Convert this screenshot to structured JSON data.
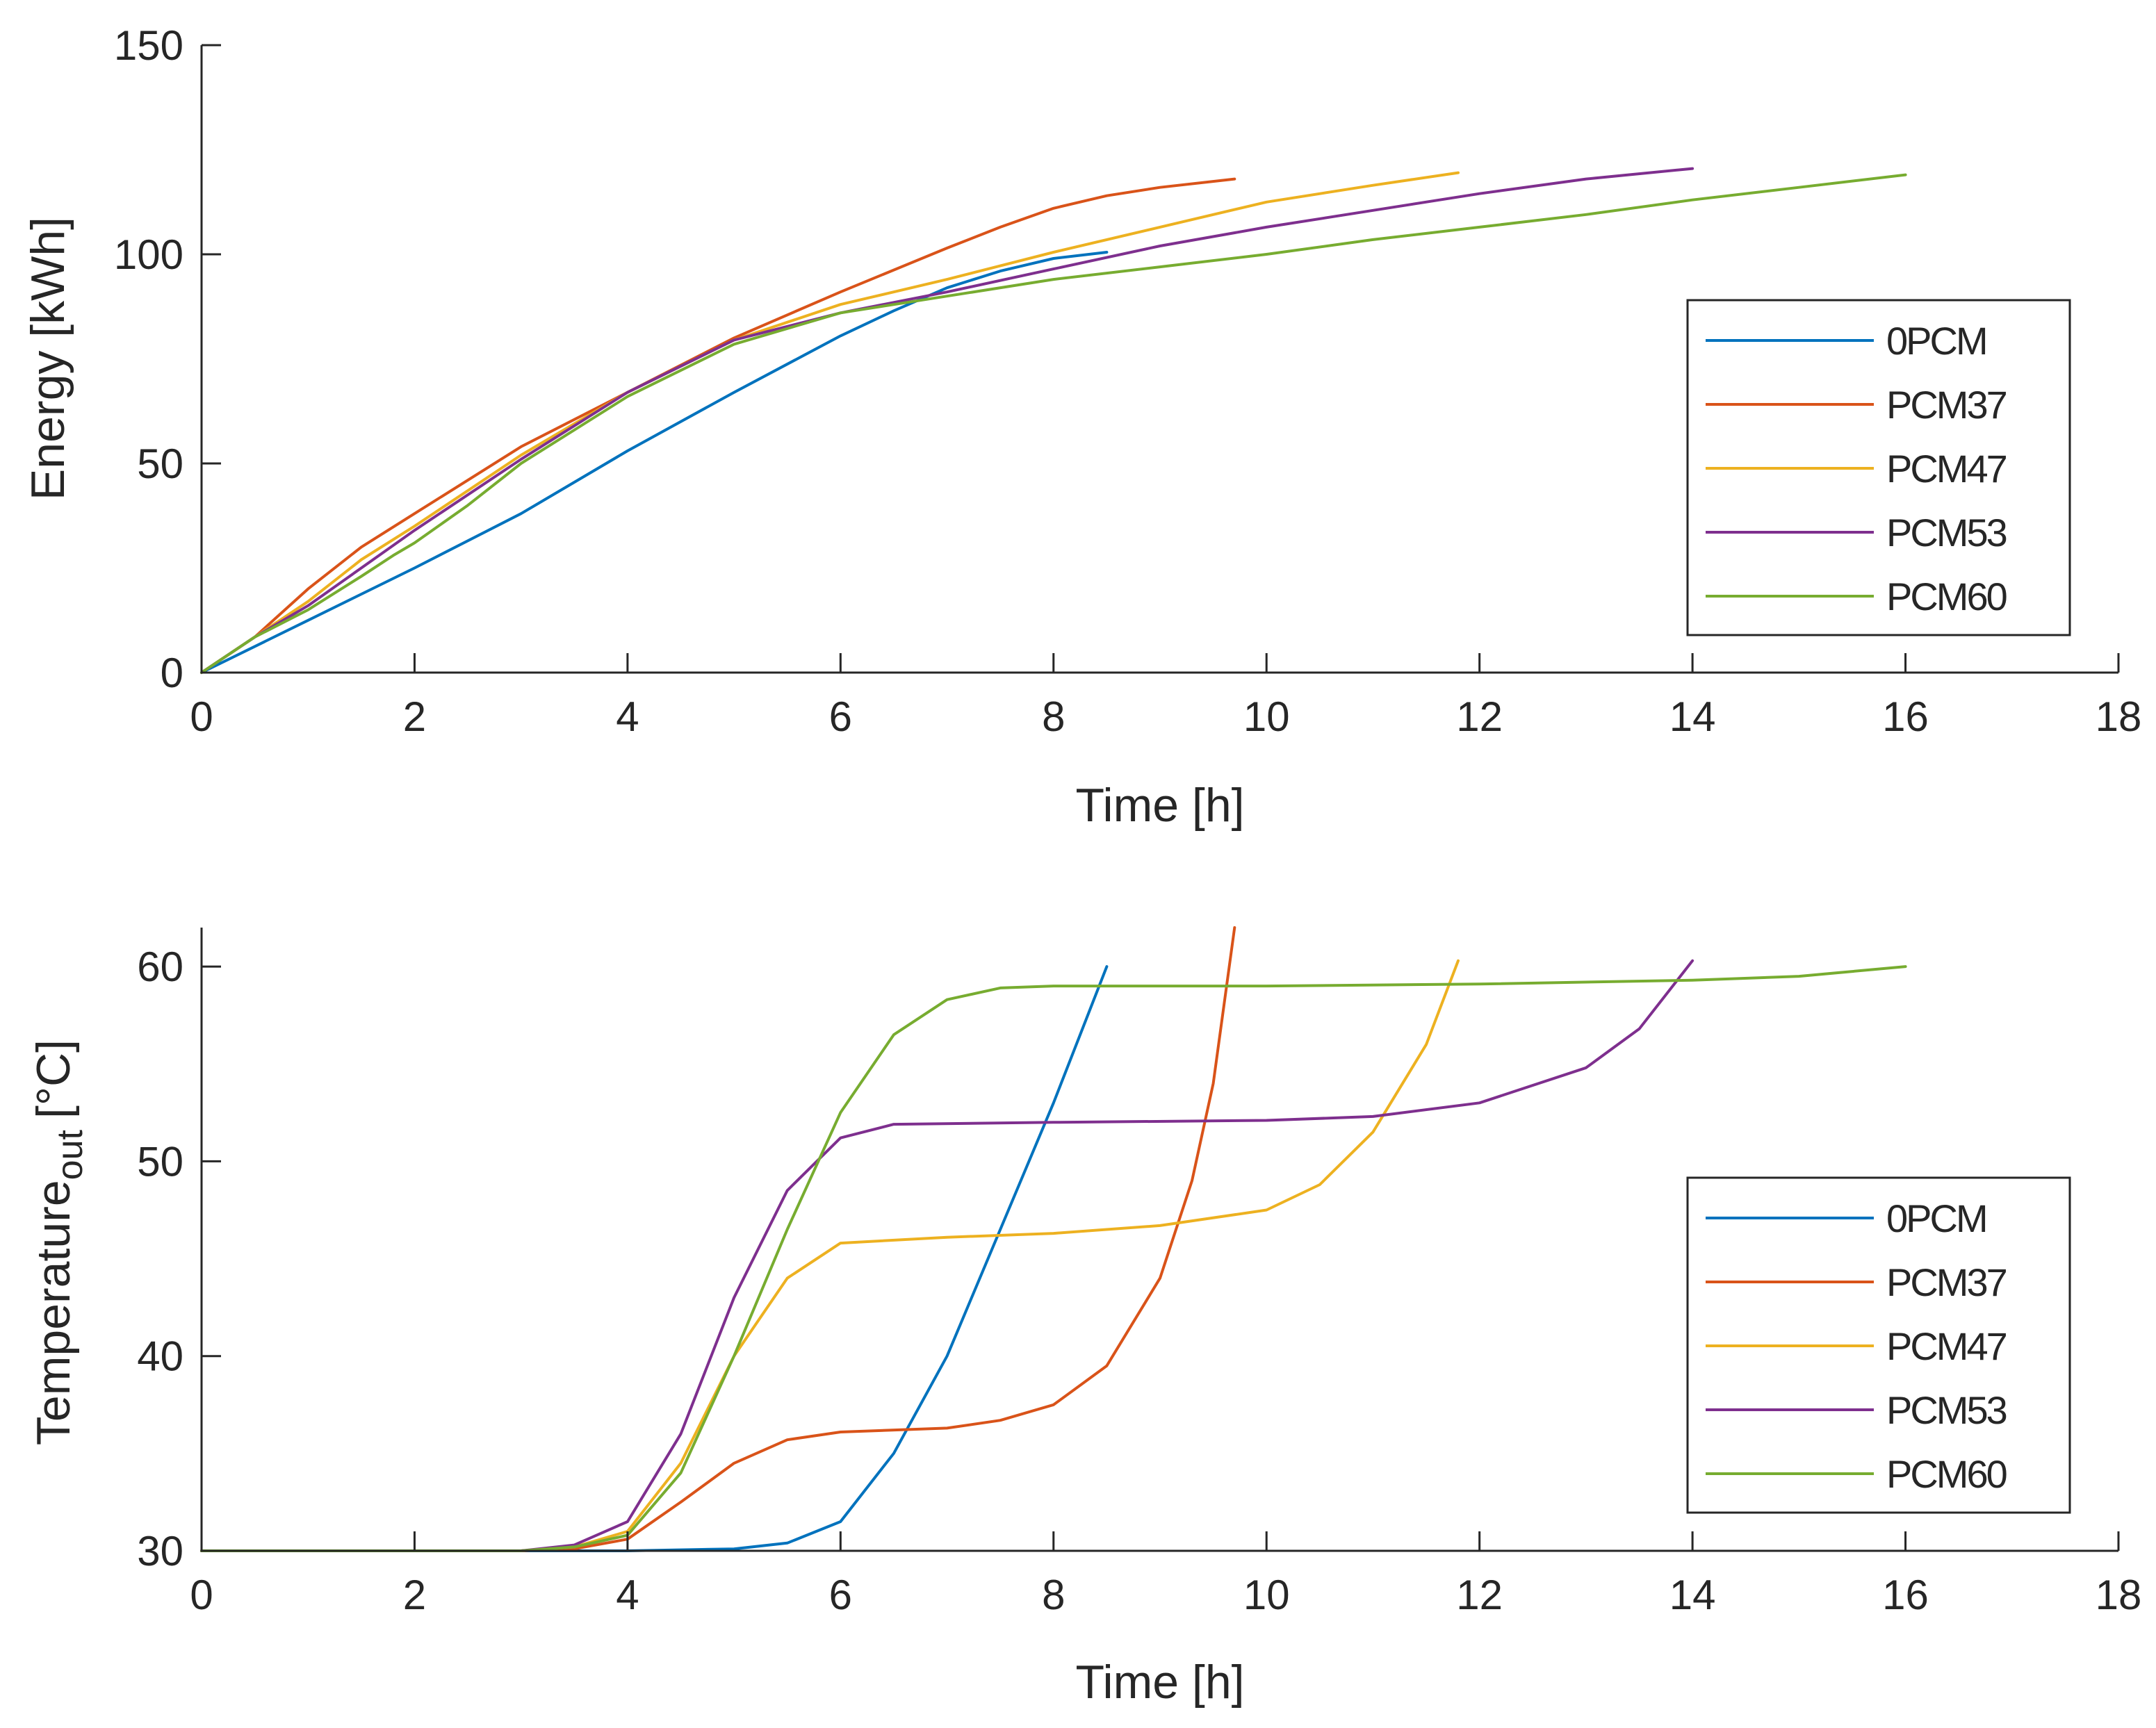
{
  "colors": {
    "0PCM": "#0072BD",
    "PCM37": "#D95319",
    "PCM47": "#EDB120",
    "PCM53": "#7E2F8E",
    "PCM60": "#77AC30",
    "axis": "#262626"
  },
  "chart_data": [
    {
      "type": "line",
      "title": "",
      "xlabel": "Time [h]",
      "ylabel": "Energy [kWh]",
      "xlim": [
        0,
        18
      ],
      "ylim": [
        0,
        150
      ],
      "xticks": [
        0,
        2,
        4,
        6,
        8,
        10,
        12,
        14,
        16,
        18
      ],
      "yticks": [
        0,
        50,
        100,
        150
      ],
      "legend": {
        "placement": "lower-right",
        "entries": [
          "0PCM",
          "PCM37",
          "PCM47",
          "PCM53",
          "PCM60"
        ]
      },
      "series": [
        {
          "name": "0PCM",
          "color": "#0072BD",
          "points": [
            [
              0,
              0
            ],
            [
              1,
              12.5
            ],
            [
              2,
              25
            ],
            [
              3,
              38
            ],
            [
              4,
              53
            ],
            [
              5,
              67
            ],
            [
              6,
              80.5
            ],
            [
              6.5,
              86.5
            ],
            [
              7,
              92
            ],
            [
              7.5,
              96
            ],
            [
              8,
              99
            ],
            [
              8.5,
              100.5
            ]
          ]
        },
        {
          "name": "PCM37",
          "color": "#D95319",
          "points": [
            [
              0,
              0
            ],
            [
              0.5,
              8.5
            ],
            [
              1,
              20
            ],
            [
              1.5,
              30
            ],
            [
              2,
              38
            ],
            [
              3,
              54
            ],
            [
              4,
              67
            ],
            [
              5,
              80
            ],
            [
              6,
              91
            ],
            [
              7,
              101.5
            ],
            [
              7.5,
              106.5
            ],
            [
              8,
              111
            ],
            [
              8.5,
              114
            ],
            [
              9,
              116
            ],
            [
              9.7,
              118
            ]
          ]
        },
        {
          "name": "PCM47",
          "color": "#EDB120",
          "points": [
            [
              0,
              0
            ],
            [
              0.5,
              8.5
            ],
            [
              1,
              17
            ],
            [
              1.5,
              27
            ],
            [
              2,
              35
            ],
            [
              3,
              52
            ],
            [
              4,
              67
            ],
            [
              5,
              79.5
            ],
            [
              6,
              88
            ],
            [
              7,
              94
            ],
            [
              8,
              100.5
            ],
            [
              9,
              106.5
            ],
            [
              10,
              112.5
            ],
            [
              11,
              116.5
            ],
            [
              11.8,
              119.5
            ]
          ]
        },
        {
          "name": "PCM53",
          "color": "#7E2F8E",
          "points": [
            [
              0,
              0
            ],
            [
              0.5,
              8.5
            ],
            [
              1,
              16
            ],
            [
              1.5,
              25
            ],
            [
              2,
              34
            ],
            [
              3,
              51
            ],
            [
              4,
              67
            ],
            [
              5,
              79.5
            ],
            [
              6,
              86
            ],
            [
              7,
              91
            ],
            [
              8,
              96.5
            ],
            [
              9,
              102
            ],
            [
              10,
              106.5
            ],
            [
              11,
              110.5
            ],
            [
              12,
              114.5
            ],
            [
              13,
              118
            ],
            [
              14,
              120.5
            ]
          ]
        },
        {
          "name": "PCM60",
          "color": "#77AC30",
          "points": [
            [
              0,
              0
            ],
            [
              0.5,
              8.5
            ],
            [
              1,
              15
            ],
            [
              1.5,
              23
            ],
            [
              1.8,
              28
            ],
            [
              2,
              31
            ],
            [
              2.5,
              40
            ],
            [
              3,
              50
            ],
            [
              4,
              66
            ],
            [
              5,
              78.5
            ],
            [
              6,
              86
            ],
            [
              7,
              90
            ],
            [
              8,
              94
            ],
            [
              9,
              97
            ],
            [
              10,
              100
            ],
            [
              11,
              103.5
            ],
            [
              12,
              106.5
            ],
            [
              13,
              109.5
            ],
            [
              14,
              113
            ],
            [
              15,
              116
            ],
            [
              16,
              119
            ]
          ]
        }
      ]
    },
    {
      "type": "line",
      "title": "",
      "xlabel": "Time [h]",
      "ylabel": "Temperature",
      "ylabel_subscript": "out",
      "ylabel_unit": "[°C]",
      "xlim": [
        0,
        18
      ],
      "ylim": [
        30,
        62
      ],
      "xticks": [
        0,
        2,
        4,
        6,
        8,
        10,
        12,
        14,
        16,
        18
      ],
      "yticks": [
        30,
        40,
        50,
        60
      ],
      "legend": {
        "placement": "lower-right",
        "entries": [
          "0PCM",
          "PCM37",
          "PCM47",
          "PCM53",
          "PCM60"
        ]
      },
      "series": [
        {
          "name": "0PCM",
          "color": "#0072BD",
          "points": [
            [
              0,
              30
            ],
            [
              4,
              30
            ],
            [
              5,
              30.1
            ],
            [
              5.5,
              30.4
            ],
            [
              6,
              31.5
            ],
            [
              6.5,
              35
            ],
            [
              7,
              40
            ],
            [
              7.5,
              46.5
            ],
            [
              8,
              53
            ],
            [
              8.5,
              60
            ]
          ]
        },
        {
          "name": "PCM37",
          "color": "#D95319",
          "points": [
            [
              0,
              30
            ],
            [
              3,
              30
            ],
            [
              3.5,
              30.1
            ],
            [
              4,
              30.6
            ],
            [
              4.5,
              32.5
            ],
            [
              5,
              34.5
            ],
            [
              5.5,
              35.7
            ],
            [
              6,
              36.1
            ],
            [
              7,
              36.3
            ],
            [
              7.5,
              36.7
            ],
            [
              8,
              37.5
            ],
            [
              8.5,
              39.5
            ],
            [
              9,
              44
            ],
            [
              9.3,
              49
            ],
            [
              9.5,
              54
            ],
            [
              9.7,
              62
            ]
          ]
        },
        {
          "name": "PCM47",
          "color": "#EDB120",
          "points": [
            [
              0,
              30
            ],
            [
              3,
              30
            ],
            [
              3.5,
              30.2
            ],
            [
              4,
              31
            ],
            [
              4.5,
              34.5
            ],
            [
              5,
              40
            ],
            [
              5.5,
              44
            ],
            [
              6,
              45.8
            ],
            [
              7,
              46.1
            ],
            [
              8,
              46.3
            ],
            [
              9,
              46.7
            ],
            [
              10,
              47.5
            ],
            [
              10.5,
              48.8
            ],
            [
              11,
              51.5
            ],
            [
              11.5,
              56
            ],
            [
              11.8,
              60.3
            ]
          ]
        },
        {
          "name": "PCM53",
          "color": "#7E2F8E",
          "points": [
            [
              0,
              30
            ],
            [
              3,
              30
            ],
            [
              3.5,
              30.3
            ],
            [
              4,
              31.5
            ],
            [
              4.5,
              36
            ],
            [
              5,
              43
            ],
            [
              5.5,
              48.5
            ],
            [
              6,
              51.2
            ],
            [
              6.5,
              51.9
            ],
            [
              8,
              52
            ],
            [
              10,
              52.1
            ],
            [
              11,
              52.3
            ],
            [
              12,
              53
            ],
            [
              13,
              54.8
            ],
            [
              13.5,
              56.8
            ],
            [
              14,
              60.3
            ]
          ]
        },
        {
          "name": "PCM60",
          "color": "#77AC30",
          "points": [
            [
              0,
              30
            ],
            [
              3,
              30
            ],
            [
              3.5,
              30.2
            ],
            [
              4,
              30.8
            ],
            [
              4.5,
              34
            ],
            [
              5,
              40
            ],
            [
              5.5,
              46.5
            ],
            [
              6,
              52.5
            ],
            [
              6.5,
              56.5
            ],
            [
              7,
              58.3
            ],
            [
              7.5,
              58.9
            ],
            [
              8,
              59
            ],
            [
              10,
              59
            ],
            [
              12,
              59.1
            ],
            [
              14,
              59.3
            ],
            [
              15,
              59.5
            ],
            [
              16,
              60
            ]
          ]
        }
      ]
    }
  ]
}
